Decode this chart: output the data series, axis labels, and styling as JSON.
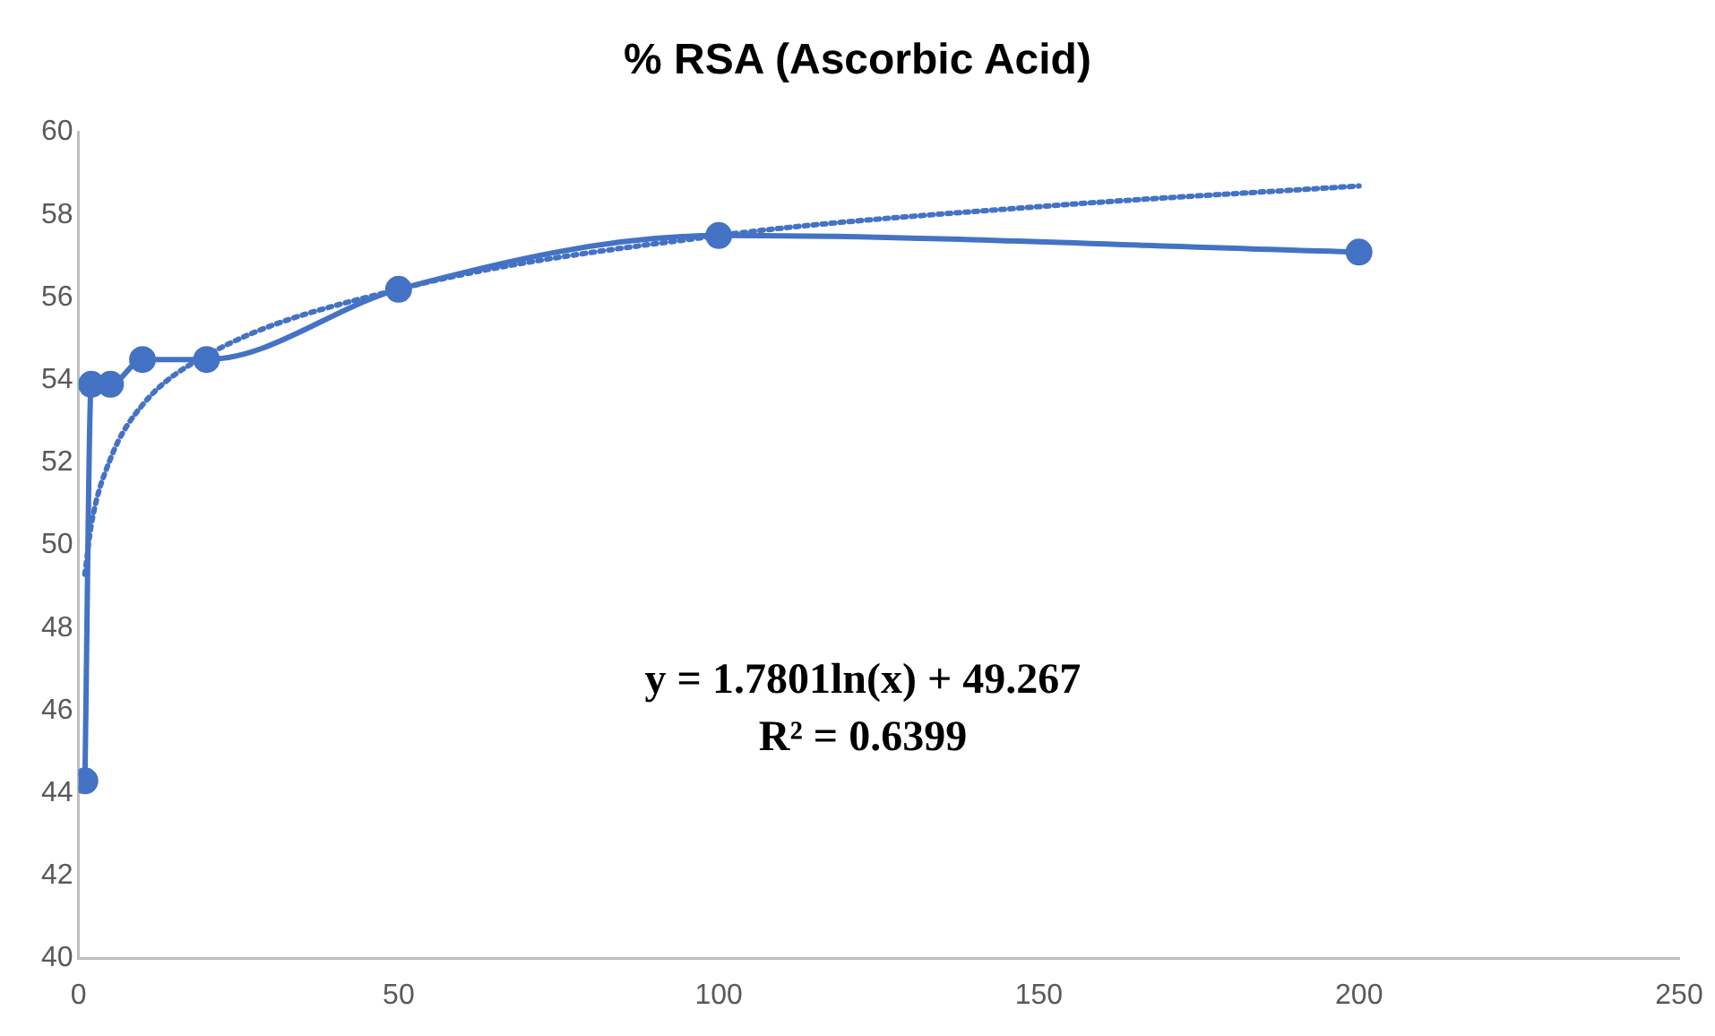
{
  "chart_data": {
    "type": "line",
    "title": "% RSA (Ascorbic Acid)",
    "x": [
      1,
      2,
      5,
      10,
      20,
      50,
      100,
      200
    ],
    "series": [
      {
        "color": "#4472c4",
        "marker": "circle",
        "line_style": "solid",
        "values": [
          44.3,
          53.9,
          53.9,
          54.5,
          54.5,
          56.2,
          57.5,
          57.1
        ]
      },
      {
        "color": "#4472c4",
        "marker": "none",
        "line_style": "dotted",
        "x": [
          1,
          2,
          5,
          10,
          20,
          50,
          100,
          150,
          200
        ],
        "values": [
          49.3,
          50.5,
          52.1,
          53.4,
          54.6,
          56.2,
          57.5,
          58.2,
          58.7
        ]
      }
    ],
    "xlim": [
      0,
      250
    ],
    "xticks": [
      0,
      50,
      100,
      150,
      200,
      250
    ],
    "ylim": [
      40,
      60
    ],
    "yticks": [
      40,
      42,
      44,
      46,
      48,
      50,
      52,
      54,
      56,
      58,
      60
    ],
    "grid": false,
    "legend": false,
    "annotations": [
      "y = 1.7801ln(x) + 49.267",
      "R² = 0.6399"
    ]
  }
}
